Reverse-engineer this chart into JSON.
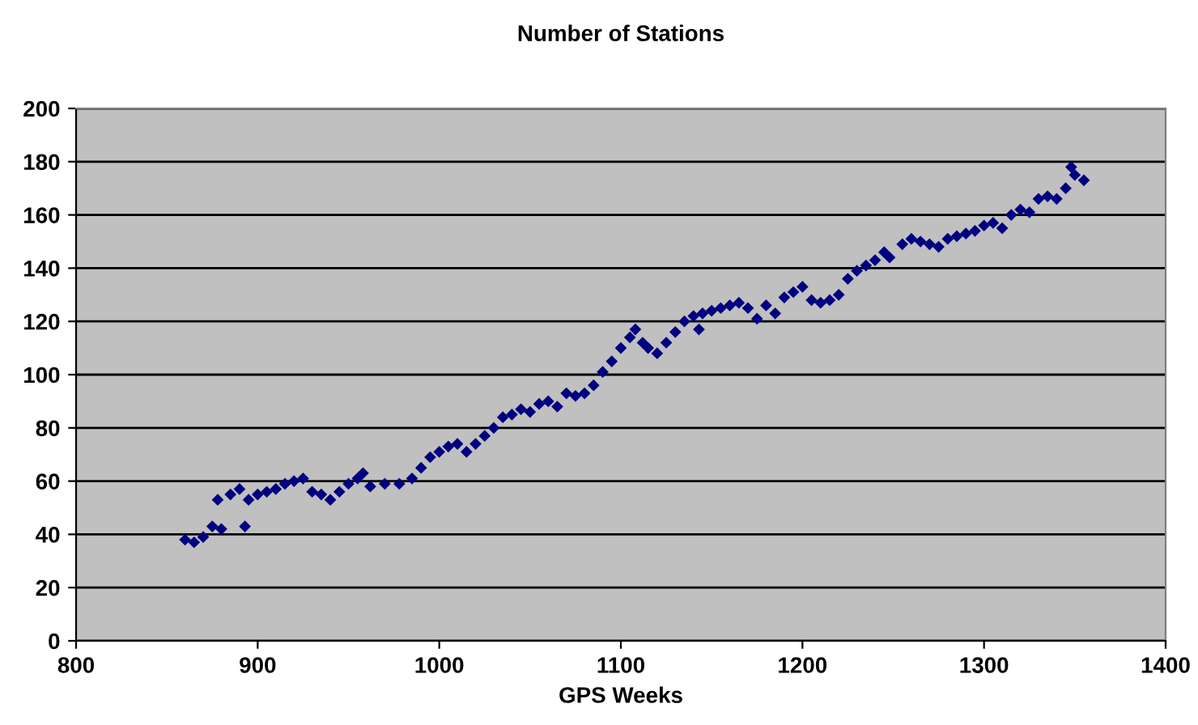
{
  "chart_data": {
    "type": "scatter",
    "title": "Number of Stations",
    "xlabel": "GPS Weeks",
    "xlim": [
      800,
      1400
    ],
    "xticks": [
      800,
      900,
      1000,
      1100,
      1200,
      1300,
      1400
    ],
    "ylim": [
      0,
      200
    ],
    "yticks": [
      0,
      20,
      40,
      60,
      80,
      100,
      120,
      140,
      160,
      180,
      200
    ],
    "grid": "y",
    "marker": "diamond",
    "legend": false,
    "series": [
      {
        "color": "#000080",
        "x": [
          860,
          865,
          870,
          875,
          880,
          878,
          885,
          890,
          893,
          895,
          900,
          905,
          910,
          915,
          920,
          925,
          930,
          935,
          940,
          945,
          950,
          955,
          958,
          962,
          970,
          978,
          985,
          990,
          995,
          1000,
          1005,
          1010,
          1015,
          1020,
          1025,
          1030,
          1035,
          1040,
          1045,
          1050,
          1055,
          1060,
          1065,
          1070,
          1075,
          1080,
          1085,
          1090,
          1095,
          1100,
          1105,
          1108,
          1112,
          1115,
          1120,
          1125,
          1130,
          1135,
          1140,
          1143,
          1145,
          1150,
          1155,
          1160,
          1165,
          1170,
          1175,
          1180,
          1185,
          1190,
          1195,
          1200,
          1205,
          1210,
          1215,
          1220,
          1225,
          1230,
          1235,
          1240,
          1245,
          1248,
          1255,
          1260,
          1265,
          1270,
          1275,
          1280,
          1285,
          1290,
          1295,
          1300,
          1305,
          1310,
          1315,
          1320,
          1325,
          1330,
          1335,
          1340,
          1345,
          1348,
          1350,
          1355
        ],
        "values": [
          38,
          37,
          39,
          43,
          42,
          53,
          55,
          57,
          43,
          53,
          55,
          56,
          57,
          59,
          60,
          61,
          56,
          55,
          53,
          56,
          59,
          61,
          63,
          58,
          59,
          59,
          61,
          65,
          69,
          71,
          73,
          74,
          71,
          74,
          77,
          80,
          84,
          85,
          87,
          86,
          89,
          90,
          88,
          93,
          92,
          93,
          96,
          101,
          105,
          110,
          114,
          117,
          112,
          110,
          108,
          112,
          116,
          120,
          122,
          117,
          123,
          124,
          125,
          126,
          127,
          125,
          121,
          126,
          123,
          129,
          131,
          133,
          128,
          127,
          128,
          130,
          136,
          139,
          141,
          143,
          146,
          144,
          149,
          151,
          150,
          149,
          148,
          151,
          152,
          153,
          154,
          156,
          157,
          155,
          160,
          162,
          161,
          166,
          167,
          166,
          170,
          178,
          175,
          173
        ]
      }
    ]
  }
}
